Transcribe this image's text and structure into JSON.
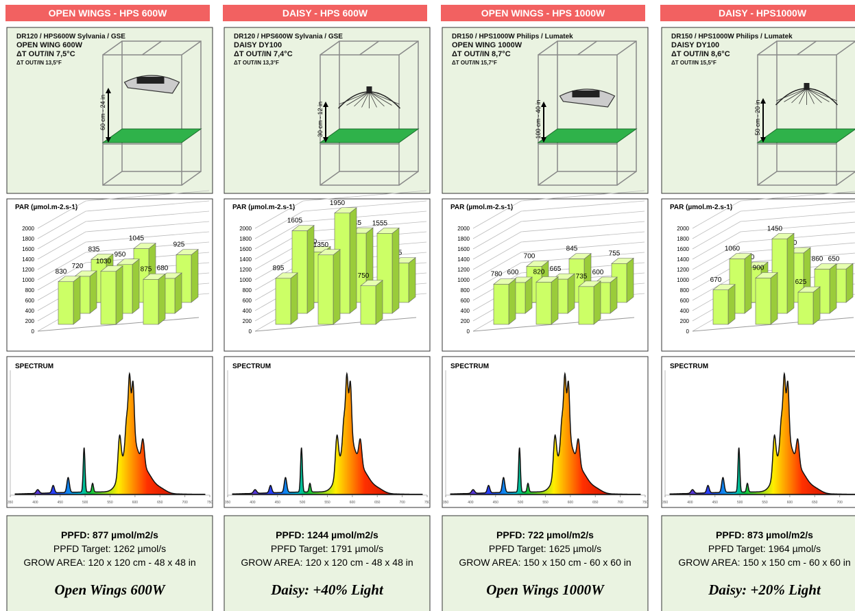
{
  "chart_data": [
    {
      "type": "bar3d",
      "title": "PAR (µmol.m-2.s-1)",
      "values": [
        830,
        720,
        835,
        1030,
        950,
        1045,
        875,
        680,
        925
      ],
      "color": "#ccff66",
      "ylim": [
        0,
        2000
      ],
      "yticks": [
        0,
        200,
        400,
        600,
        800,
        1000,
        1200,
        1400,
        1600,
        1800,
        2000
      ],
      "grid": true
    },
    {
      "type": "bar3d",
      "title": "PAR (µmol.m-2.s-1)",
      "values": [
        895,
        1605,
        980,
        1350,
        1950,
        1345,
        750,
        1555,
        765
      ],
      "color": "#ccff66",
      "ylim": [
        0,
        2000
      ],
      "yticks": [
        0,
        200,
        400,
        600,
        800,
        1000,
        1200,
        1400,
        1600,
        1800,
        2000
      ],
      "grid": true
    },
    {
      "type": "bar3d",
      "title": "PAR (µmol.m-2.s-1)",
      "values": [
        780,
        600,
        700,
        820,
        665,
        845,
        735,
        600,
        755
      ],
      "color": "#ccff66",
      "ylim": [
        0,
        2000
      ],
      "yticks": [
        0,
        200,
        400,
        600,
        800,
        1000,
        1200,
        1400,
        1600,
        1800,
        2000
      ],
      "grid": true
    },
    {
      "type": "bar3d",
      "title": "PAR (µmol.m-2.s-1)",
      "values": [
        670,
        1060,
        680,
        900,
        1450,
        960,
        625,
        860,
        650
      ],
      "color": "#ccff66",
      "ylim": [
        0,
        2000
      ],
      "yticks": [
        0,
        200,
        400,
        600,
        800,
        1000,
        1200,
        1400,
        1600,
        1800,
        2000
      ],
      "grid": true
    }
  ],
  "spectrum_xticks": [
    350,
    400,
    450,
    500,
    550,
    600,
    650,
    700,
    750
  ],
  "panels": [
    {
      "header": "OPEN WINGS - HPS 600W",
      "specs": [
        "DR120 / HPS600W Sylvania / GSE",
        "OPEN WING 600W",
        "ΔT OUT/IN 7,5°C",
        "ΔT OUT/IN 13,5°F"
      ],
      "height": "60 cm - 24 in",
      "spectrum_title": "SPECTRUM",
      "ppfd": "PPFD: 877 µmol/m2/s",
      "target": "PPFD Target: 1262 µmol/s",
      "area": "GROW AREA: 120 x 120 cm - 48 x 48 in",
      "slogan": "Open Wings 600W"
    },
    {
      "header": "DAISY - HPS 600W",
      "specs": [
        "DR120 / HPS600W Sylvania / GSE",
        "DAISY DY100",
        "ΔT OUT/IN 7,4°C",
        "ΔT OUT/IN 13,3°F"
      ],
      "height": "30 cm - 12 in",
      "spectrum_title": "SPECTRUM",
      "ppfd": "PPFD: 1244 µmol/m2/s",
      "target": "PPFD Target: 1791 µmol/s",
      "area": "GROW AREA: 120 x 120 cm - 48 x 48 in",
      "slogan": "Daisy: +40% Light"
    },
    {
      "header": "OPEN WINGS - HPS 1000W",
      "specs": [
        "DR150 / HPS1000W Philips / Lumatek",
        "OPEN WING 1000W",
        "ΔT OUT/IN 8,7°C",
        "ΔT OUT/IN 15,7°F"
      ],
      "height": "100 cm - 40 in",
      "spectrum_title": "SPECTRUM",
      "ppfd": "PPFD: 722 µmol/m2/s",
      "target": "PPFD Target: 1625 µmol/s",
      "area": "GROW AREA: 150 x 150 cm - 60 x 60 in",
      "slogan": "Open Wings 1000W"
    },
    {
      "header": "DAISY - HPS1000W",
      "specs": [
        "DR150 / HPS1000W Philips / Lumatek",
        "DAISY DY100",
        "ΔT OUT/IN 8,6°C",
        "ΔT OUT/IN 15,5°F"
      ],
      "height": "50 cm - 20 in",
      "spectrum_title": "SPECTRUM",
      "ppfd": "PPFD: 873 µmol/m2/s",
      "target": "PPFD Target: 1964 µmol/s",
      "area": "GROW AREA: 150 x 150 cm - 60 x 60 in",
      "slogan": "Daisy: +20% Light"
    }
  ]
}
